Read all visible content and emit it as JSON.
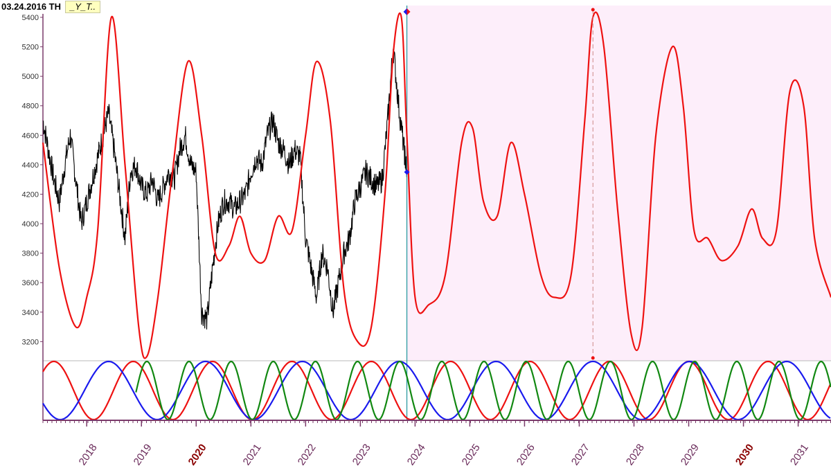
{
  "header": {
    "date_label": "03.24.2016 TH",
    "tag_label": "_Y_T.."
  },
  "chart_data": {
    "type": "line",
    "title": "",
    "xlabel": "",
    "ylabel": "",
    "x_domain": [
      2017.2,
      2031.6
    ],
    "ylim": [
      3070,
      5480
    ],
    "y_ticks": [
      "3200",
      "3400",
      "3600",
      "3800",
      "4000",
      "4200",
      "4400",
      "4600",
      "4800",
      "5000",
      "5200",
      "5400"
    ],
    "x_ticks": [
      {
        "label": "2018",
        "x": 2018,
        "bold": false
      },
      {
        "label": "2019",
        "x": 2019,
        "bold": false
      },
      {
        "label": "2020",
        "x": 2020,
        "bold": true
      },
      {
        "label": "2021",
        "x": 2021,
        "bold": false
      },
      {
        "label": "2022",
        "x": 2022,
        "bold": false
      },
      {
        "label": "2023",
        "x": 2023,
        "bold": false
      },
      {
        "label": "2024",
        "x": 2024,
        "bold": false
      },
      {
        "label": "2025",
        "x": 2025,
        "bold": false
      },
      {
        "label": "2026",
        "x": 2026,
        "bold": false
      },
      {
        "label": "2027",
        "x": 2027,
        "bold": false
      },
      {
        "label": "2028",
        "x": 2028,
        "bold": false
      },
      {
        "label": "2029",
        "x": 2029,
        "bold": false
      },
      {
        "label": "2030",
        "x": 2030,
        "bold": true
      },
      {
        "label": "2031",
        "x": 2031,
        "bold": false
      }
    ],
    "forecast_start": 2023.85,
    "marker_x": 2027.25,
    "colors": {
      "price": "#000000",
      "forecast": "#ee1111",
      "forecast_region": "#fdeefa",
      "cursor": "#2a9aa0",
      "axis": "#7a3a6a",
      "tick_label": "#6a2a5a",
      "tick_label_bold": "#8a0000",
      "cycle_red": "#ee1111",
      "cycle_blue": "#1a1aee",
      "cycle_green": "#118811"
    },
    "series": [
      {
        "name": "",
        "role": "price",
        "x": [
          2017.2,
          2017.3,
          2017.4,
          2017.5,
          2017.6,
          2017.7,
          2017.8,
          2017.9,
          2018.0,
          2018.1,
          2018.2,
          2018.3,
          2018.4,
          2018.5,
          2018.6,
          2018.7,
          2018.8,
          2018.9,
          2019.0,
          2019.1,
          2019.2,
          2019.3,
          2019.4,
          2019.5,
          2019.6,
          2019.7,
          2019.8,
          2019.9,
          2020.0,
          2020.1,
          2020.2,
          2020.3,
          2020.4,
          2020.5,
          2020.6,
          2020.7,
          2020.8,
          2020.9,
          2021.0,
          2021.1,
          2021.2,
          2021.3,
          2021.4,
          2021.5,
          2021.6,
          2021.7,
          2021.8,
          2021.9,
          2022.0,
          2022.1,
          2022.2,
          2022.3,
          2022.4,
          2022.5,
          2022.6,
          2022.7,
          2022.8,
          2022.9,
          2023.0,
          2023.1,
          2023.2,
          2023.3,
          2023.4,
          2023.5,
          2023.6,
          2023.7,
          2023.8,
          2023.85
        ],
        "y": [
          4700,
          4500,
          4300,
          4150,
          4400,
          4600,
          4300,
          4000,
          4150,
          4300,
          4450,
          4600,
          4750,
          4500,
          4200,
          3900,
          4350,
          4400,
          4250,
          4200,
          4300,
          4150,
          4250,
          4350,
          4300,
          4500,
          4600,
          4400,
          4350,
          3400,
          3350,
          3700,
          4000,
          4150,
          4150,
          4100,
          4150,
          4200,
          4350,
          4450,
          4400,
          4600,
          4700,
          4550,
          4500,
          4400,
          4500,
          4450,
          3900,
          3700,
          3500,
          3800,
          3700,
          3400,
          3600,
          3800,
          3900,
          4150,
          4250,
          4350,
          4300,
          4250,
          4300,
          4700,
          5200,
          4800,
          4500,
          4350
        ]
      },
      {
        "name": "",
        "role": "forecast",
        "x": [
          2017.2,
          2017.5,
          2017.8,
          2018.0,
          2018.2,
          2018.45,
          2018.7,
          2018.95,
          2019.1,
          2019.3,
          2019.55,
          2019.85,
          2020.1,
          2020.35,
          2020.6,
          2020.8,
          2021.0,
          2021.25,
          2021.5,
          2021.75,
          2022.0,
          2022.2,
          2022.45,
          2022.7,
          2022.95,
          2023.2,
          2023.45,
          2023.6,
          2023.75,
          2023.85,
          2024.0,
          2024.25,
          2024.55,
          2024.85,
          2025.05,
          2025.25,
          2025.5,
          2025.75,
          2026.0,
          2026.3,
          2026.55,
          2026.85,
          2027.1,
          2027.25,
          2027.45,
          2027.7,
          2027.95,
          2028.15,
          2028.4,
          2028.7,
          2028.9,
          2029.1,
          2029.35,
          2029.6,
          2029.9,
          2030.15,
          2030.35,
          2030.6,
          2030.85,
          2031.1,
          2031.3,
          2031.6
        ],
        "y": [
          4550,
          3700,
          3300,
          3500,
          3950,
          5400,
          4400,
          3300,
          3100,
          3500,
          4300,
          5100,
          4600,
          3800,
          3850,
          4050,
          3800,
          3750,
          4050,
          3950,
          4600,
          5100,
          4700,
          3550,
          3200,
          3300,
          4200,
          5150,
          5400,
          4600,
          3500,
          3450,
          3650,
          4550,
          4650,
          4150,
          4050,
          4550,
          4200,
          3650,
          3500,
          3650,
          4700,
          5400,
          5200,
          4100,
          3250,
          3300,
          4600,
          5200,
          4800,
          3950,
          3900,
          3750,
          3850,
          4100,
          3900,
          3950,
          4900,
          4800,
          3900,
          3500
        ]
      }
    ],
    "cycles": [
      {
        "name": "",
        "color_key": "cycle_red",
        "period": 1.45,
        "phase": 2017.4
      },
      {
        "name": "",
        "color_key": "cycle_blue",
        "period": 1.77,
        "phase": 2018.4
      },
      {
        "name": "",
        "color_key": "cycle_green",
        "period": 0.77,
        "phase": 2019.1,
        "start": 2018.9
      }
    ]
  }
}
